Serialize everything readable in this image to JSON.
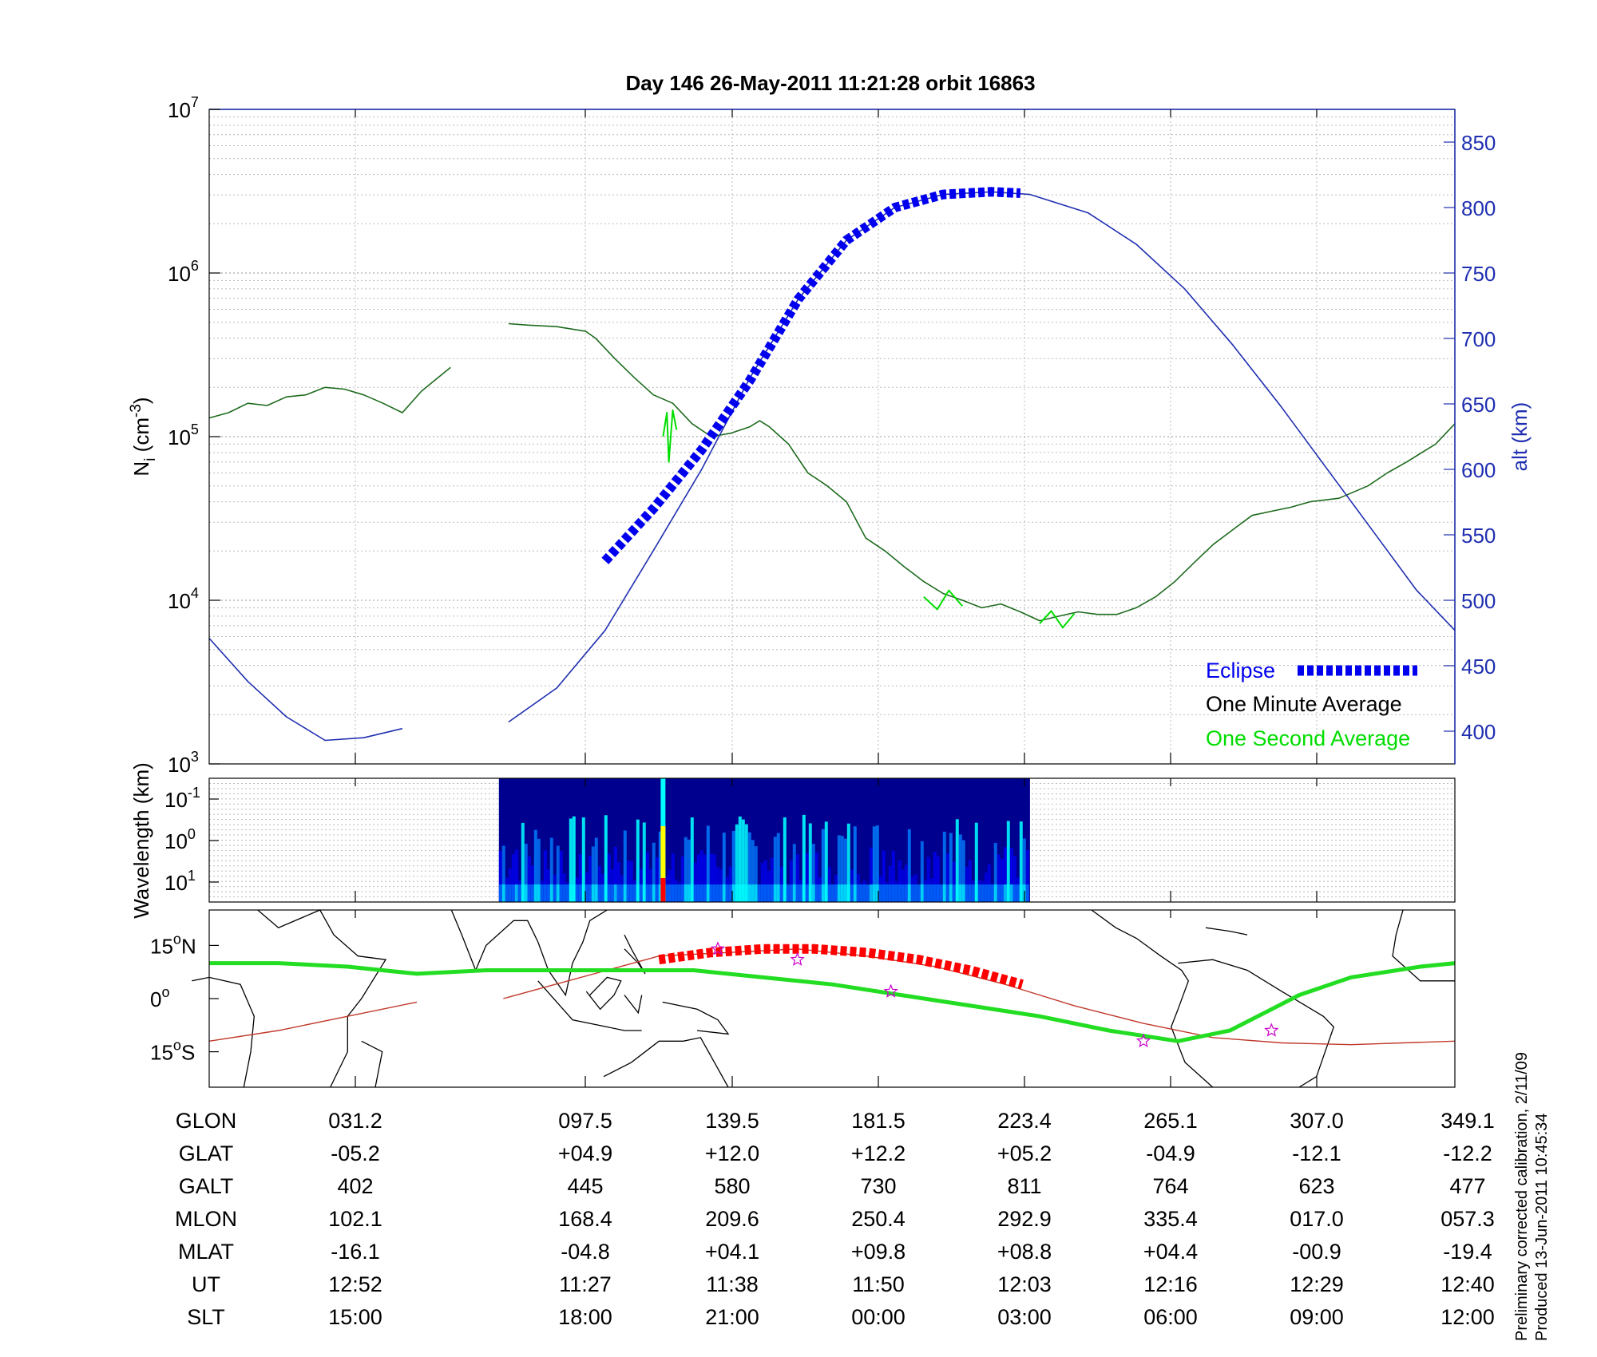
{
  "chart_data": [
    {
      "type": "line",
      "title": "Day 146  26-May-2011 11:21:28   orbit 16863",
      "ylabel_main": "N",
      "ylabel_sub": "i",
      "ylabel_unit_open": " (cm",
      "ylabel_unit_exp": "-3",
      "ylabel_unit_close": ")",
      "ylabel_right": "alt (km)",
      "yscale": "log",
      "ylim": [
        1000,
        10000000
      ],
      "y_ticks": [
        {
          "base": "10",
          "exp": "3",
          "value": 1000
        },
        {
          "base": "10",
          "exp": "4",
          "value": 10000
        },
        {
          "base": "10",
          "exp": "5",
          "value": 100000
        },
        {
          "base": "10",
          "exp": "6",
          "value": 1000000
        },
        {
          "base": "10",
          "exp": "7",
          "value": 10000000
        }
      ],
      "y2lim": [
        375,
        875
      ],
      "y2_ticks": [
        "400",
        "450",
        "500",
        "550",
        "600",
        "650",
        "700",
        "750",
        "800",
        "850"
      ],
      "x_ticks_minutes_rel": [
        0,
        0.79,
        1.29,
        1.79,
        2.29,
        2.79,
        3.29,
        3.79,
        4.29
      ],
      "legend": [
        {
          "label": "Eclipse",
          "color": "#0000ee",
          "style": "dashed-thick"
        },
        {
          "label": "One Minute Average",
          "color": "#000000"
        },
        {
          "label": "One Second Average",
          "color": "#00dd00"
        }
      ],
      "legend_position": "bottom-right",
      "grid": true,
      "series": [
        {
          "name": "One Minute Average",
          "color": "#1e6b1e",
          "segments": [
            [
              [
                -0.5,
                130000
              ],
              [
                -0.4,
                140000
              ],
              [
                -0.3,
                160000
              ],
              [
                -0.2,
                155000
              ],
              [
                -0.1,
                175000
              ],
              [
                0.0,
                180000
              ],
              [
                0.1,
                200000
              ],
              [
                0.2,
                195000
              ],
              [
                0.3,
                180000
              ],
              [
                0.4,
                160000
              ],
              [
                0.5,
                140000
              ],
              [
                0.6,
                190000
              ],
              [
                0.75,
                265000
              ]
            ],
            [
              [
                1.05,
                490000
              ],
              [
                1.15,
                480000
              ],
              [
                1.3,
                470000
              ],
              [
                1.45,
                440000
              ],
              [
                1.5,
                400000
              ],
              [
                1.6,
                300000
              ],
              [
                1.7,
                230000
              ],
              [
                1.8,
                180000
              ],
              [
                1.9,
                160000
              ],
              [
                2.0,
                120000
              ],
              [
                2.1,
                100000
              ],
              [
                2.2,
                105000
              ],
              [
                2.3,
                115000
              ],
              [
                2.35,
                125000
              ],
              [
                2.4,
                115000
              ],
              [
                2.5,
                90000
              ],
              [
                2.6,
                60000
              ],
              [
                2.7,
                50000
              ],
              [
                2.8,
                40000
              ],
              [
                2.9,
                24000
              ],
              [
                3.0,
                20000
              ],
              [
                3.1,
                16000
              ],
              [
                3.2,
                13000
              ],
              [
                3.3,
                11000
              ],
              [
                3.4,
                10000
              ],
              [
                3.5,
                9000
              ],
              [
                3.6,
                9500
              ],
              [
                3.7,
                8500
              ],
              [
                3.8,
                7500
              ],
              [
                3.9,
                8000
              ],
              [
                4.0,
                8500
              ],
              [
                4.1,
                8200
              ],
              [
                4.2,
                8200
              ],
              [
                4.3,
                9000
              ],
              [
                4.4,
                10500
              ],
              [
                4.5,
                13000
              ],
              [
                4.6,
                17000
              ],
              [
                4.7,
                22000
              ],
              [
                4.8,
                27000
              ],
              [
                4.9,
                33000
              ],
              [
                5.0,
                35000
              ],
              [
                5.1,
                37000
              ],
              [
                5.2,
                40000
              ],
              [
                5.35,
                42000
              ],
              [
                5.5,
                50000
              ],
              [
                5.6,
                60000
              ],
              [
                5.7,
                70000
              ],
              [
                5.85,
                90000
              ],
              [
                5.95,
                120000
              ]
            ]
          ]
        },
        {
          "name": "One Second Average",
          "color": "#00dd00",
          "segments": [
            [
              [
                1.85,
                100000
              ],
              [
                1.87,
                140000
              ],
              [
                1.88,
                70000
              ],
              [
                1.9,
                145000
              ],
              [
                1.92,
                110000
              ]
            ],
            [
              [
                3.2,
                10500
              ],
              [
                3.27,
                8800
              ],
              [
                3.33,
                11500
              ],
              [
                3.4,
                9200
              ]
            ],
            [
              [
                3.8,
                7200
              ],
              [
                3.86,
                8600
              ],
              [
                3.92,
                6800
              ],
              [
                3.98,
                8300
              ]
            ]
          ]
        },
        {
          "name": "altitude",
          "axis": "right",
          "color": "#1f2fb0",
          "segments": [
            [
              [
                -0.5,
                471
              ],
              [
                -0.3,
                438
              ],
              [
                -0.1,
                411
              ],
              [
                0.1,
                393
              ],
              [
                0.3,
                395
              ],
              [
                0.5,
                402
              ]
            ],
            [
              [
                1.05,
                407
              ],
              [
                1.3,
                433
              ],
              [
                1.55,
                477
              ],
              [
                1.8,
                538
              ],
              [
                2.05,
                600
              ],
              [
                2.3,
                670
              ],
              [
                2.55,
                730
              ],
              [
                2.8,
                775
              ],
              [
                3.05,
                800
              ],
              [
                3.3,
                810
              ],
              [
                3.55,
                812
              ],
              [
                3.75,
                810
              ],
              [
                4.05,
                796
              ],
              [
                4.3,
                772
              ],
              [
                4.55,
                738
              ],
              [
                4.8,
                695
              ],
              [
                5.05,
                648
              ],
              [
                5.3,
                598
              ],
              [
                5.55,
                548
              ],
              [
                5.75,
                508
              ],
              [
                5.95,
                477
              ]
            ]
          ]
        },
        {
          "name": "Eclipse",
          "axis": "right",
          "color": "#0000ee",
          "segments": [
            [
              [
                1.55,
                530
              ],
              [
                1.8,
                570
              ],
              [
                2.05,
                615
              ],
              [
                2.3,
                668
              ],
              [
                2.55,
                730
              ],
              [
                2.8,
                775
              ],
              [
                3.05,
                800
              ],
              [
                3.3,
                810
              ],
              [
                3.55,
                812
              ],
              [
                3.7,
                811
              ]
            ]
          ]
        }
      ],
      "x_time_span_minutes": [
        -0.5,
        5.95
      ]
    },
    {
      "type": "heatmap",
      "ylabel": "Wavelength (km)",
      "yscale": "log",
      "y_ticks": [
        {
          "base": "10",
          "exp": "-1"
        },
        {
          "base": "10",
          "exp": "0"
        },
        {
          "base": "10",
          "exp": "1"
        }
      ],
      "data_span_minutes": [
        1.0,
        3.75
      ],
      "spike_minute": 1.85,
      "colormap": [
        "#00008f",
        "#0000ff",
        "#0080ff",
        "#00ffff",
        "#80ff80",
        "#ffff00",
        "#ff8000",
        "#ff0000"
      ]
    },
    {
      "type": "map",
      "y_ticks": [
        {
          "value": "15",
          "sup": "o",
          "hemi": "N",
          "lat": 15
        },
        {
          "value": "0",
          "sup": "o",
          "hemi": "",
          "lat": 0
        },
        {
          "value": "15",
          "sup": "o",
          "hemi": "S",
          "lat": -15
        }
      ],
      "lat_range": [
        -25,
        25
      ],
      "lon_range": [
        0,
        360
      ],
      "orbit_color": "#c0392b",
      "eclipse_color": "#ff0000",
      "magnetic_equator_color": "#22dd22",
      "marker_color": "#cc00cc"
    }
  ],
  "table": {
    "labels": [
      "GLON",
      "GLAT",
      "GALT",
      "MLON",
      "MLAT",
      "UT",
      "SLT"
    ],
    "columns": [
      [
        "031.2",
        "-05.2",
        "402",
        "102.1",
        "-16.1",
        "12:52",
        "15:00"
      ],
      [
        "097.5",
        "+04.9",
        "445",
        "168.4",
        "-04.8",
        "11:27",
        "18:00"
      ],
      [
        "139.5",
        "+12.0",
        "580",
        "209.6",
        "+04.1",
        "11:38",
        "21:00"
      ],
      [
        "181.5",
        "+12.2",
        "730",
        "250.4",
        "+09.8",
        "11:50",
        "00:00"
      ],
      [
        "223.4",
        "+05.2",
        "811",
        "292.9",
        "+08.8",
        "12:03",
        "03:00"
      ],
      [
        "265.1",
        "-04.9",
        "764",
        "335.4",
        "+04.4",
        "12:16",
        "06:00"
      ],
      [
        "307.0",
        "-12.1",
        "623",
        "017.0",
        "-00.9",
        "12:29",
        "09:00"
      ],
      [
        "349.1",
        "-12.2",
        "477",
        "057.3",
        "-19.4",
        "12:40",
        "12:00"
      ]
    ]
  },
  "footer": {
    "line1": "Preliminary corrected calibration, 2/11/09",
    "line2": "Produced 13-Jun-2011 10:45:34"
  }
}
